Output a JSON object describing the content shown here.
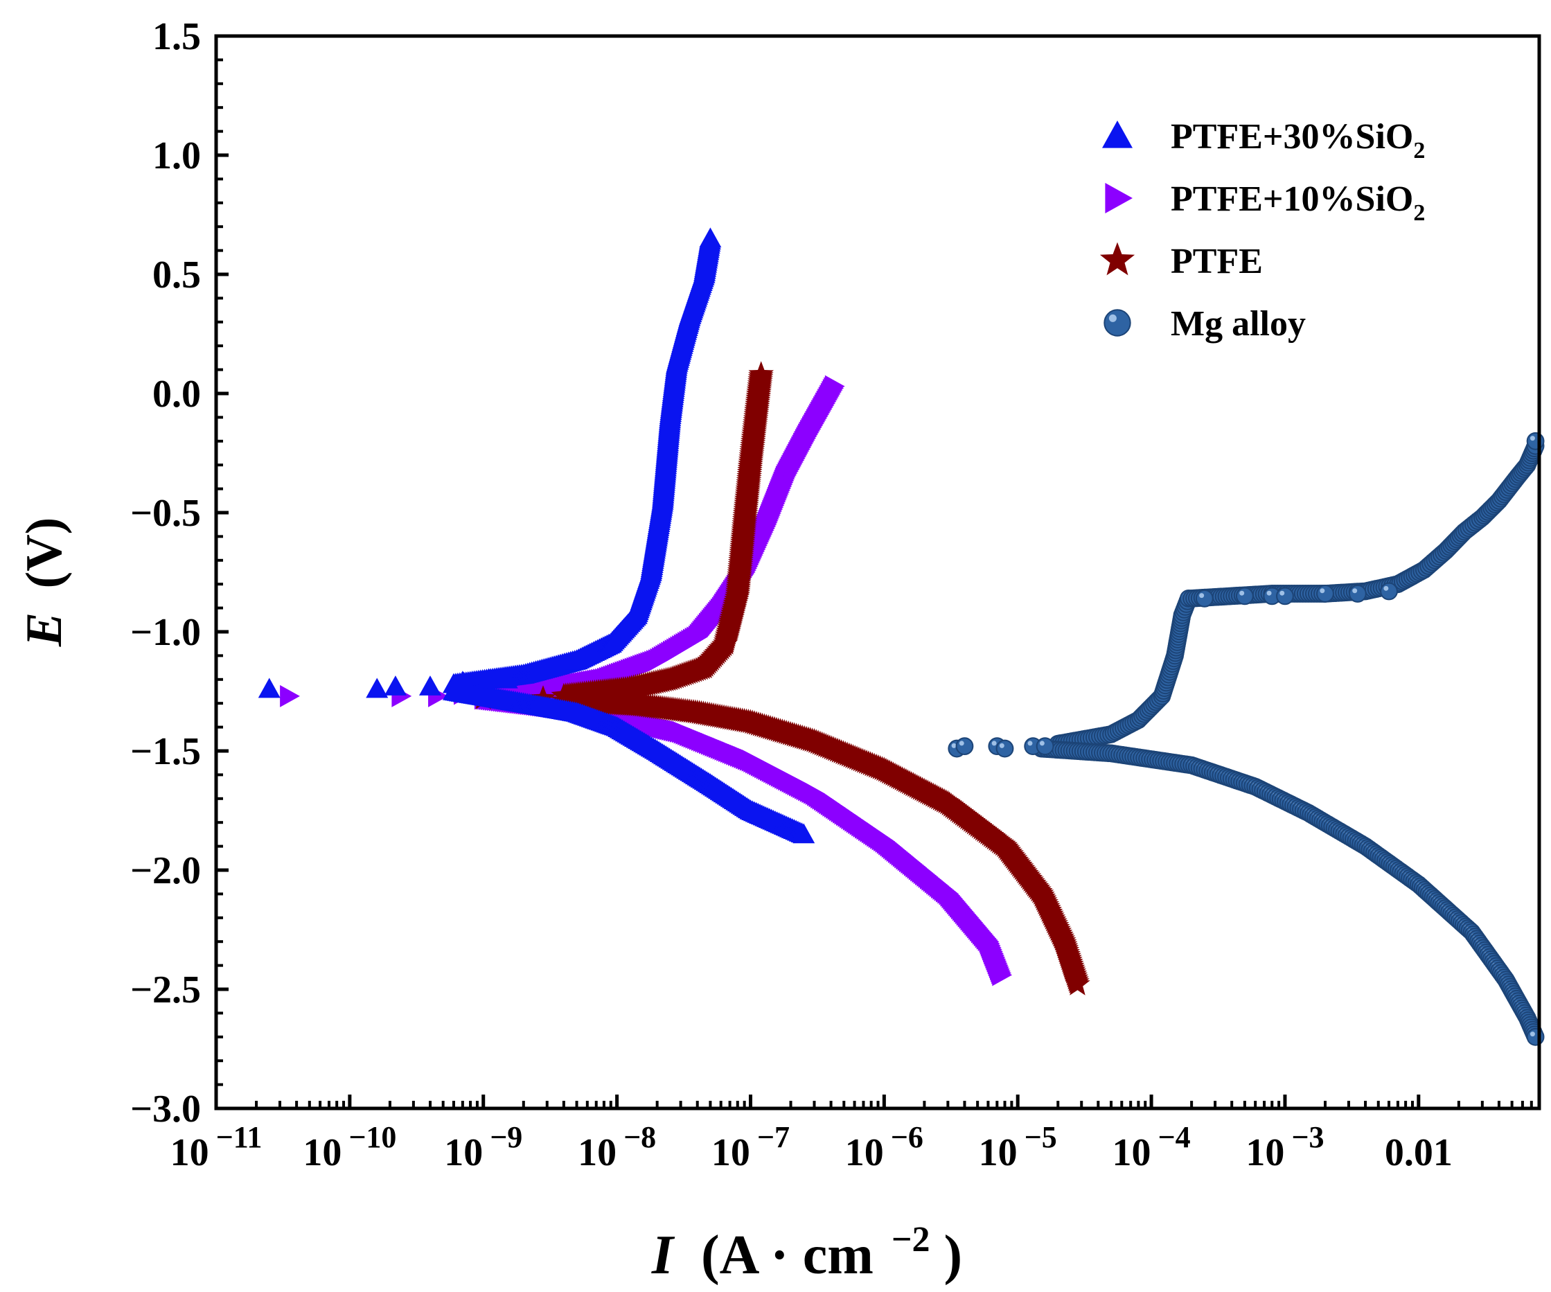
{
  "chart_data": {
    "type": "scatter",
    "title": "",
    "xlabel": {
      "symbol": "I",
      "unit_open": "(A · cm",
      "unit_exp": "−2",
      "unit_close": ")"
    },
    "ylabel": {
      "symbol": "E",
      "unit": "(V)"
    },
    "x_scale": "log",
    "xlim": [
      1e-11,
      0.08
    ],
    "ylim": [
      -3.0,
      1.5
    ],
    "x_ticks": [
      {
        "value": 1e-11,
        "base": "10",
        "exp": "−11"
      },
      {
        "value": 1e-10,
        "base": "10",
        "exp": "−10"
      },
      {
        "value": 1e-09,
        "base": "10",
        "exp": "−9"
      },
      {
        "value": 1e-08,
        "base": "10",
        "exp": "−8"
      },
      {
        "value": 1e-07,
        "base": "10",
        "exp": "−7"
      },
      {
        "value": 1e-06,
        "base": "10",
        "exp": "−6"
      },
      {
        "value": 1e-05,
        "base": "10",
        "exp": "−5"
      },
      {
        "value": 0.0001,
        "base": "10",
        "exp": "−4"
      },
      {
        "value": 0.001,
        "base": "10",
        "exp": "−3"
      },
      {
        "value": 0.01,
        "base": "0.01",
        "exp": ""
      }
    ],
    "y_ticks": [
      {
        "value": 1.5,
        "label": "1.5"
      },
      {
        "value": 1.0,
        "label": "1.0"
      },
      {
        "value": 0.5,
        "label": "0.5"
      },
      {
        "value": 0.0,
        "label": "0.0"
      },
      {
        "value": -0.5,
        "label": "−0.5"
      },
      {
        "value": -1.0,
        "label": "−1.0"
      },
      {
        "value": -1.5,
        "label": "−1.5"
      },
      {
        "value": -2.0,
        "label": "−2.0"
      },
      {
        "value": -2.5,
        "label": "−2.5"
      },
      {
        "value": -3.0,
        "label": "−3.0"
      }
    ],
    "legend_position": "top-right",
    "series": [
      {
        "name": "PTFE+30%SiO2",
        "label_main": "PTFE+30%SiO",
        "label_sub": "2",
        "color": "#0a14f0",
        "marker": "triangle-up",
        "anodic": [
          [
            6e-10,
            -1.22
          ],
          [
            2e-09,
            -1.18
          ],
          [
            5e-09,
            -1.12
          ],
          [
            9e-09,
            -1.05
          ],
          [
            1.4e-08,
            -0.93
          ],
          [
            1.8e-08,
            -0.75
          ],
          [
            2.2e-08,
            -0.45
          ],
          [
            2.5e-08,
            -0.1
          ],
          [
            2.8e-08,
            0.12
          ],
          [
            3.5e-08,
            0.32
          ],
          [
            4.5e-08,
            0.5
          ],
          [
            5e-08,
            0.65
          ]
        ],
        "cathodic": [
          [
            6e-10,
            -1.25
          ],
          [
            2e-09,
            -1.3
          ],
          [
            5e-09,
            -1.34
          ],
          [
            1e-08,
            -1.4
          ],
          [
            2e-08,
            -1.5
          ],
          [
            5e-08,
            -1.64
          ],
          [
            1e-07,
            -1.75
          ],
          [
            2.5e-07,
            -1.85
          ]
        ],
        "scattered": [
          [
            2.5e-11,
            -1.24
          ],
          [
            1.6e-10,
            -1.24
          ],
          [
            2.2e-10,
            -1.23
          ],
          [
            4e-10,
            -1.23
          ],
          [
            7e-10,
            -1.21
          ],
          [
            1.1e-09,
            -1.2
          ],
          [
            1.5e-09,
            -1.2
          ]
        ]
      },
      {
        "name": "PTFE+10%SiO2",
        "label_main": "PTFE+10%SiO",
        "label_sub": "2",
        "color": "#8c00ff",
        "marker": "triangle-right",
        "anodic": [
          [
            1e-09,
            -1.26
          ],
          [
            3e-09,
            -1.24
          ],
          [
            8e-09,
            -1.2
          ],
          [
            2e-08,
            -1.12
          ],
          [
            4e-08,
            -1.02
          ],
          [
            6e-08,
            -0.9
          ],
          [
            9e-08,
            -0.75
          ],
          [
            1.3e-07,
            -0.55
          ],
          [
            1.8e-07,
            -0.35
          ],
          [
            2.6e-07,
            -0.18
          ],
          [
            3.5e-07,
            -0.05
          ],
          [
            4.2e-07,
            0.03
          ]
        ],
        "cathodic": [
          [
            1e-09,
            -1.28
          ],
          [
            4e-09,
            -1.32
          ],
          [
            1e-08,
            -1.36
          ],
          [
            3e-08,
            -1.42
          ],
          [
            1e-07,
            -1.54
          ],
          [
            3e-07,
            -1.68
          ],
          [
            1e-06,
            -1.88
          ],
          [
            3e-06,
            -2.1
          ],
          [
            6e-06,
            -2.3
          ],
          [
            7.5e-06,
            -2.44
          ]
        ],
        "scattered": [
          [
            3.5e-11,
            -1.27
          ],
          [
            2.4e-10,
            -1.27
          ],
          [
            4.5e-10,
            -1.27
          ],
          [
            7e-10,
            -1.26
          ]
        ]
      },
      {
        "name": "PTFE",
        "label_main": "PTFE",
        "label_sub": "",
        "color": "#800000",
        "marker": "star",
        "anodic": [
          [
            4e-09,
            -1.27
          ],
          [
            1.2e-08,
            -1.24
          ],
          [
            2.5e-08,
            -1.2
          ],
          [
            4.5e-08,
            -1.15
          ],
          [
            6.5e-08,
            -1.05
          ],
          [
            8e-08,
            -0.85
          ],
          [
            9e-08,
            -0.55
          ],
          [
            1e-07,
            -0.3
          ],
          [
            1.1e-07,
            -0.1
          ],
          [
            1.2e-07,
            0.08
          ]
        ],
        "cathodic": [
          [
            4e-09,
            -1.29
          ],
          [
            1.5e-08,
            -1.31
          ],
          [
            4e-08,
            -1.34
          ],
          [
            1e-07,
            -1.38
          ],
          [
            3e-07,
            -1.46
          ],
          [
            1e-06,
            -1.58
          ],
          [
            3e-06,
            -1.72
          ],
          [
            8e-06,
            -1.9
          ],
          [
            1.5e-05,
            -2.1
          ],
          [
            2.2e-05,
            -2.3
          ],
          [
            2.8e-05,
            -2.48
          ]
        ],
        "scattered": [
          [
            1e-09,
            -1.28
          ],
          [
            2.8e-09,
            -1.28
          ],
          [
            5.5e-09,
            -1.28
          ],
          [
            8e-09,
            -1.28
          ]
        ]
      },
      {
        "name": "Mg alloy",
        "label_main": "Mg alloy",
        "label_sub": "",
        "color": "#2e63a3",
        "marker": "sphere",
        "anodic": [
          [
            2e-05,
            -1.47
          ],
          [
            5e-05,
            -1.43
          ],
          [
            8e-05,
            -1.37
          ],
          [
            0.00012,
            -1.27
          ],
          [
            0.00015,
            -1.1
          ],
          [
            0.00017,
            -0.93
          ],
          [
            0.00019,
            -0.86
          ]
        ],
        "anodic2": [
          [
            0.0002,
            -0.86
          ],
          [
            0.0004,
            -0.85
          ],
          [
            0.0008,
            -0.84
          ],
          [
            0.002,
            -0.84
          ],
          [
            0.004,
            -0.83
          ],
          [
            0.007,
            -0.8
          ],
          [
            0.011,
            -0.74
          ],
          [
            0.016,
            -0.66
          ],
          [
            0.022,
            -0.58
          ],
          [
            0.03,
            -0.52
          ],
          [
            0.04,
            -0.45
          ],
          [
            0.055,
            -0.35
          ],
          [
            0.065,
            -0.3
          ],
          [
            0.075,
            -0.22
          ]
        ],
        "cathodic": [
          [
            1.5e-05,
            -1.49
          ],
          [
            5e-05,
            -1.51
          ],
          [
            0.0002,
            -1.56
          ],
          [
            0.0006,
            -1.65
          ],
          [
            0.0015,
            -1.76
          ],
          [
            0.004,
            -1.9
          ],
          [
            0.01,
            -2.06
          ],
          [
            0.025,
            -2.26
          ],
          [
            0.045,
            -2.46
          ],
          [
            0.065,
            -2.62
          ],
          [
            0.075,
            -2.7
          ]
        ],
        "scattered": [
          [
            3.5e-06,
            -1.49
          ],
          [
            4e-06,
            -1.48
          ],
          [
            7e-06,
            -1.48
          ],
          [
            8e-06,
            -1.49
          ],
          [
            1.3e-05,
            -1.48
          ],
          [
            1.6e-05,
            -1.48
          ],
          [
            0.00025,
            -0.86
          ],
          [
            0.0005,
            -0.85
          ],
          [
            0.0008,
            -0.85
          ],
          [
            0.001,
            -0.85
          ],
          [
            0.002,
            -0.84
          ],
          [
            0.0035,
            -0.84
          ],
          [
            0.006,
            -0.83
          ],
          [
            0.075,
            -0.2
          ]
        ]
      }
    ]
  }
}
